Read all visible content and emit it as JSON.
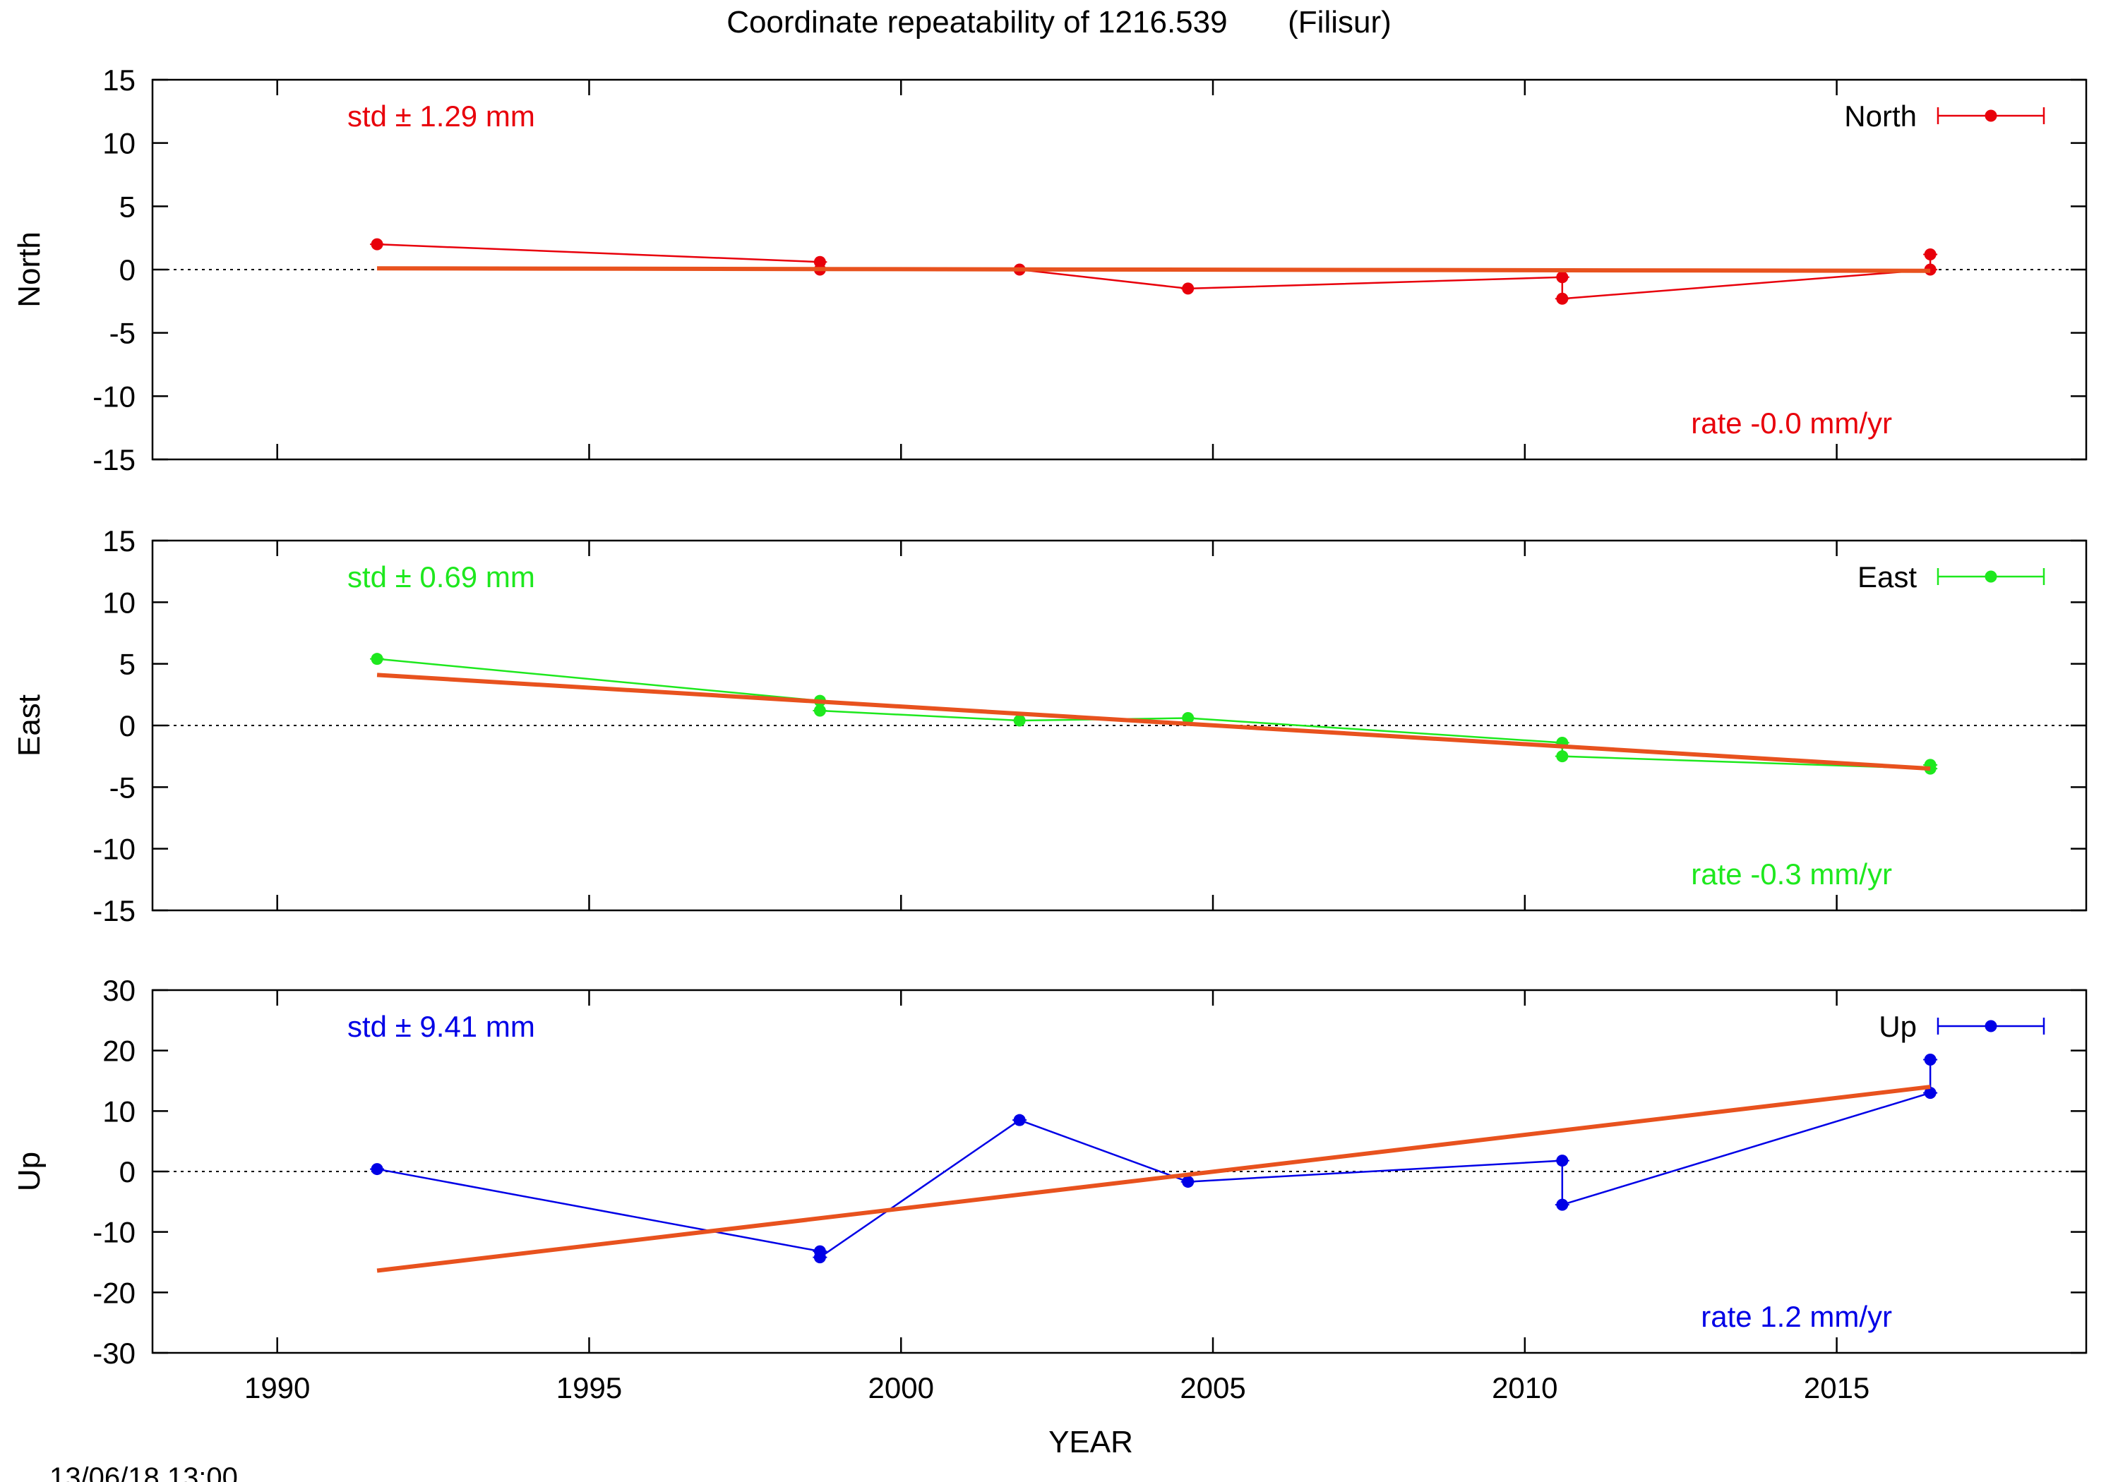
{
  "title": "Coordinate repeatability of 1216.539       (Filisur)",
  "timestamp": "13/06/18 13:00",
  "xlabel": "YEAR",
  "colors": {
    "fit": "#e8521e",
    "axis": "#000000"
  },
  "chart_data": [
    {
      "type": "line",
      "component": "North",
      "ylabel": "North",
      "legend": "North",
      "legend_position": "top-right",
      "color": "#e8000b",
      "ylim": [
        -15,
        15
      ],
      "yticks": [
        15,
        10,
        5,
        0,
        -5,
        -10,
        -15
      ],
      "std_label": "std ± 1.29 mm",
      "rate_label": "rate -0.0 mm/yr",
      "series": [
        {
          "name": "North",
          "x": [
            1991.6,
            1998.7,
            1998.7,
            2001.9,
            2004.6,
            2010.6,
            2010.6,
            2016.5,
            2016.5
          ],
          "y": [
            2.0,
            0.6,
            0.0,
            0.0,
            -1.5,
            -0.6,
            -2.3,
            0.0,
            1.2
          ]
        }
      ],
      "fit": {
        "x": [
          1991.6,
          2016.5
        ],
        "y": [
          0.1,
          -0.1
        ]
      }
    },
    {
      "type": "line",
      "component": "East",
      "ylabel": "East",
      "legend": "East",
      "legend_position": "top-right",
      "color": "#1ee81e",
      "ylim": [
        -15,
        15
      ],
      "yticks": [
        15,
        10,
        5,
        0,
        -5,
        -10,
        -15
      ],
      "std_label": "std ± 0.69 mm",
      "rate_label": "rate -0.3 mm/yr",
      "series": [
        {
          "name": "East",
          "x": [
            1991.6,
            1998.7,
            1998.7,
            2001.9,
            2004.6,
            2010.6,
            2010.6,
            2016.5,
            2016.5
          ],
          "y": [
            5.4,
            2.0,
            1.2,
            0.4,
            0.6,
            -1.4,
            -2.5,
            -3.5,
            -3.2
          ]
        }
      ],
      "fit": {
        "x": [
          1991.6,
          2016.5
        ],
        "y": [
          4.1,
          -3.5
        ]
      }
    },
    {
      "type": "line",
      "component": "Up",
      "ylabel": "Up",
      "legend": "Up",
      "legend_position": "top-right",
      "color": "#0000e6",
      "ylim": [
        -30,
        30
      ],
      "yticks": [
        30,
        20,
        10,
        0,
        -10,
        -20,
        -30
      ],
      "std_label": "std ± 9.41 mm",
      "rate_label": "rate  1.2 mm/yr",
      "series": [
        {
          "name": "Up",
          "x": [
            1991.6,
            1998.7,
            1998.7,
            2001.9,
            2004.6,
            2010.6,
            2010.6,
            2016.5,
            2016.5
          ],
          "y": [
            0.4,
            -13.2,
            -14.2,
            8.5,
            -1.7,
            1.8,
            -5.5,
            13.0,
            18.5
          ]
        }
      ],
      "fit": {
        "x": [
          1991.6,
          2016.5
        ],
        "y": [
          -16.4,
          14.0
        ]
      }
    }
  ],
  "xaxis": {
    "xlim": [
      1988,
      2019
    ],
    "ticks": [
      1990,
      1995,
      2000,
      2005,
      2010,
      2015
    ]
  }
}
